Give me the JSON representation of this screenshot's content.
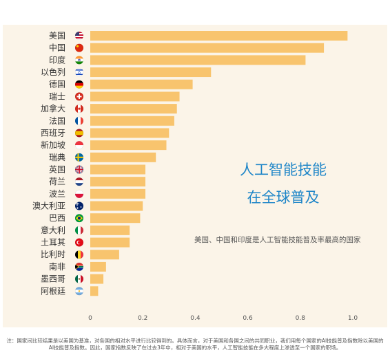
{
  "chart_data": {
    "type": "bar",
    "orientation": "horizontal",
    "categories": [
      "美国",
      "中国",
      "印度",
      "以色列",
      "德国",
      "瑞士",
      "加拿大",
      "法国",
      "西班牙",
      "新加坡",
      "瑞典",
      "英国",
      "荷兰",
      "波兰",
      "澳大利亚",
      "巴西",
      "意大利",
      "土耳其",
      "比利时",
      "南非",
      "墨西哥",
      "阿根廷"
    ],
    "values": [
      0.98,
      0.89,
      0.82,
      0.46,
      0.39,
      0.34,
      0.33,
      0.32,
      0.3,
      0.29,
      0.25,
      0.21,
      0.21,
      0.21,
      0.2,
      0.19,
      0.15,
      0.15,
      0.11,
      0.06,
      0.05,
      0.03
    ],
    "xlim": [
      0,
      1.0
    ],
    "xticks": [
      "0",
      "0.2",
      "0.4",
      "0.6",
      "0.8",
      "1.0"
    ],
    "xtick_values": [
      0,
      0.2,
      0.4,
      0.6,
      0.8,
      1.0
    ],
    "grid": false,
    "bar_color": "#f8c46e",
    "flags": [
      "us-flag-icon",
      "cn-flag-icon",
      "in-flag-icon",
      "il-flag-icon",
      "de-flag-icon",
      "ch-flag-icon",
      "ca-flag-icon",
      "fr-flag-icon",
      "es-flag-icon",
      "sg-flag-icon",
      "se-flag-icon",
      "gb-flag-icon",
      "nl-flag-icon",
      "pl-flag-icon",
      "au-flag-icon",
      "br-flag-icon",
      "it-flag-icon",
      "tr-flag-icon",
      "be-flag-icon",
      "za-flag-icon",
      "mx-flag-icon",
      "ar-flag-icon"
    ]
  },
  "headline": {
    "line1": "人工智能技能",
    "line2": "在全球普及"
  },
  "subtitle": "美国、中国和印度是人工智能技能普及率最高的国家",
  "footnote": "注：国家间比较结果是以美国为基准，对各国的相对水平进行比较得到的。具体而言，对于美国和各国之间的共同职业，我们用每个国家的AI技能普及指数除以美国的AI技能普及指数。因此，国家指数反映了在过去3年中，相对于美国的水平，人工智能技能在多大程度上渗透至一个国家的职场。",
  "colors": {
    "headline": "#1f86c8",
    "panel": "#fbf4e8",
    "bar": "#f8c46e"
  }
}
